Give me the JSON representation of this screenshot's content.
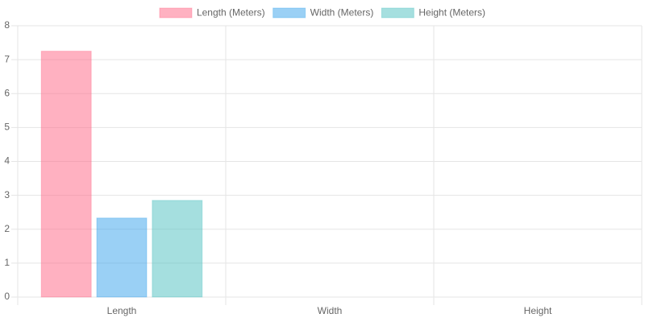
{
  "chart_data": {
    "type": "bar",
    "categories": [
      "Length",
      "Width",
      "Height"
    ],
    "series": [
      {
        "name": "Length (Meters)",
        "color": "#ff6384",
        "values": [
          7.25,
          null,
          null
        ]
      },
      {
        "name": "Width (Meters)",
        "color": "#36a2eb",
        "values": [
          2.33,
          null,
          null
        ]
      },
      {
        "name": "Height (Meters)",
        "color": "#4bc0c0",
        "values": [
          2.85,
          null,
          null
        ]
      }
    ],
    "ylim": [
      0,
      8
    ],
    "yticks": [
      0,
      1,
      2,
      3,
      4,
      5,
      6,
      7,
      8
    ],
    "grid": true,
    "legend": "top"
  }
}
